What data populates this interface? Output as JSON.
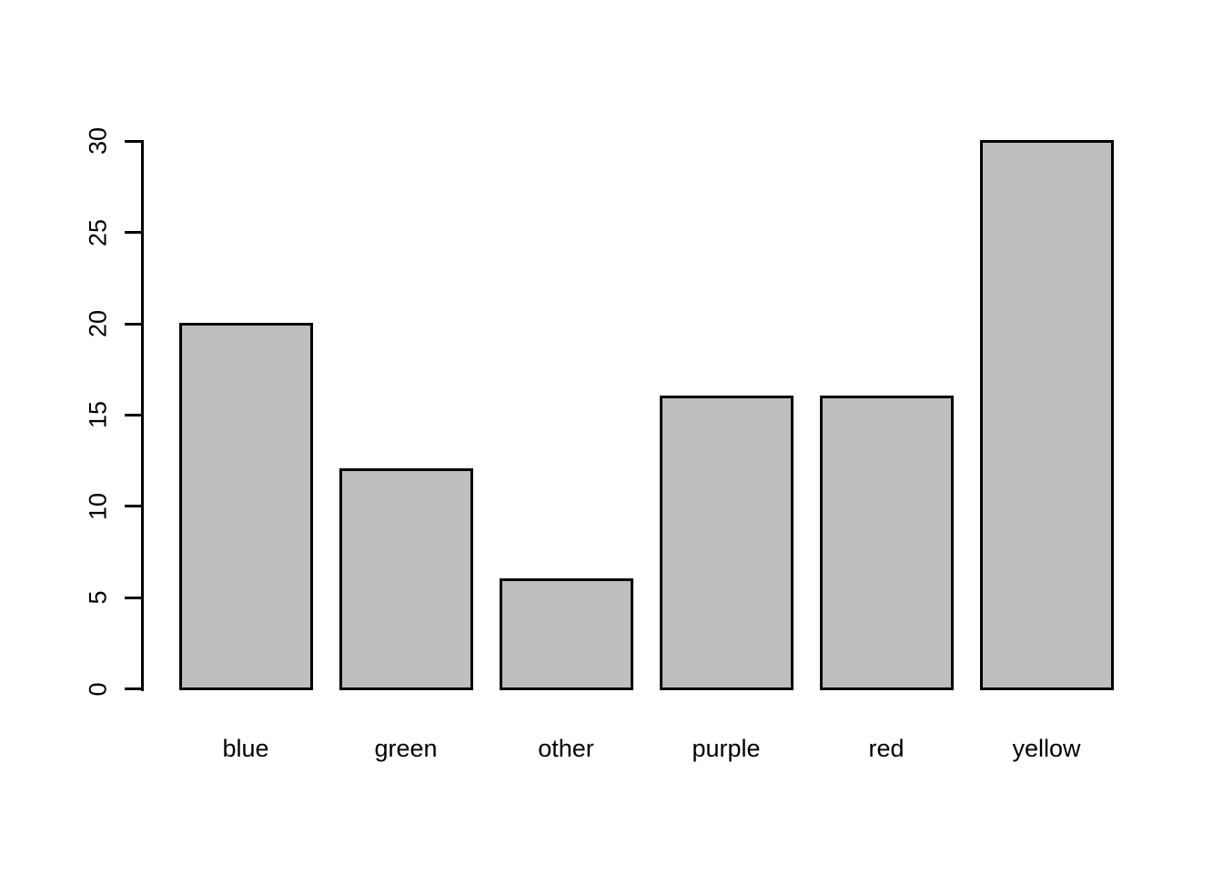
{
  "figure": {
    "background": "#FFFFFF"
  },
  "chart_data": {
    "type": "bar",
    "title": "",
    "xlabel": "",
    "ylabel": "",
    "categories": [
      "blue",
      "green",
      "other",
      "purple",
      "red",
      "yellow"
    ],
    "values": [
      20,
      12,
      6,
      16,
      16,
      30
    ],
    "y_ticks": [
      0,
      5,
      10,
      15,
      20,
      25,
      30
    ],
    "ylim": [
      0,
      30
    ],
    "bar_fill": "#BEBEBE",
    "bar_border": "#000000",
    "axis_color": "#000000",
    "text_color": "#000000",
    "grid": false,
    "legend": false
  }
}
